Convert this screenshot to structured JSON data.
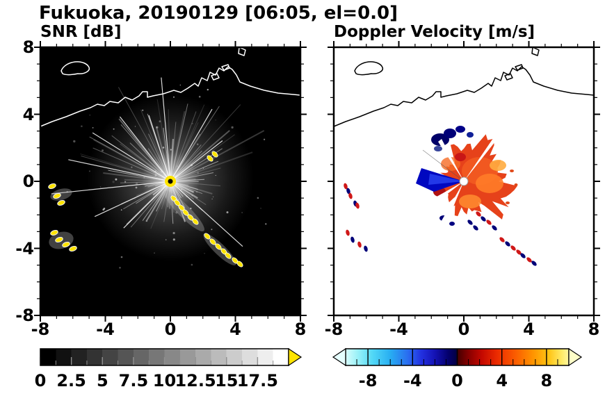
{
  "header": {
    "title": "Fukuoka, 20190129 [06:05, el=0.0]"
  },
  "panels": {
    "snr": {
      "title": "SNR [dB]",
      "yticks": [
        "8",
        "4",
        "0",
        "-4",
        "-8"
      ],
      "xticks": [
        "-8",
        "-4",
        "0",
        "4",
        "8"
      ],
      "colorbar": {
        "labels": [
          "0",
          "2.5",
          "5",
          "7.5",
          "10",
          "12.5",
          "15",
          "17.5"
        ]
      }
    },
    "doppler": {
      "title": "Doppler Velocity [m/s]",
      "xticks": [
        "-8",
        "-4",
        "0",
        "4",
        "8"
      ],
      "colorbar": {
        "labels": [
          "-8",
          "-4",
          "0",
          "4",
          "8"
        ]
      }
    }
  },
  "colors": {
    "snr_background": "#000000",
    "snr_echo": "#ffe400",
    "snr_colorbar_over_arrow": "#ffe400",
    "doppler_positive": "#e6421a",
    "doppler_negative": "#0008c0",
    "doppler_under_arrow": "#e6ffff",
    "doppler_over_arrow": "#ffffc8"
  },
  "chart_data": [
    {
      "type": "heatmap",
      "panel": "left",
      "title": "SNR [dB]",
      "xlim": [
        -8,
        8
      ],
      "ylim": [
        -8,
        8
      ],
      "xticks": [
        -8,
        -4,
        0,
        4,
        8
      ],
      "yticks": [
        -8,
        -4,
        0,
        4,
        8
      ],
      "grid": false,
      "background": "black (SNR = 0 dB)",
      "colorbar": {
        "orientation": "horizontal",
        "range": [
          0,
          20
        ],
        "tick_values": [
          0,
          2.5,
          5,
          7.5,
          10,
          12.5,
          15,
          17.5
        ],
        "scale": "grayscale black to white",
        "over_range_arrow": "yellow"
      },
      "features": [
        {
          "label": "radar site",
          "x": 0,
          "y": 0,
          "desc": "saturated yellow core with black center dot"
        },
        {
          "label": "radial spoke artifacts",
          "desc": "thin white streaks radiating from origin, brightest fan toward upper-left through upper-right, haze radius ~4 km"
        },
        {
          "label": "high-SNR clutter arc",
          "desc": "yellow (>20 dB) blobs with gray fringe along arc from ~(0.3,-1.0) to ~(3.8,-4.7), short yellow dash near (2.4,1.3)"
        },
        {
          "label": "high-SNR patches west",
          "desc": "yellow/white patches near x=-7.3, y=-0.6 to -3.8"
        },
        {
          "label": "coastline overlay",
          "desc": "white coastline across top near y=4 to 5.5, island near (-6.3,6.9), harbor piers near (2.5-4.5, 5.3-6.8), islet near (4.3,7.8)"
        }
      ]
    },
    {
      "type": "heatmap",
      "panel": "right",
      "title": "Doppler Velocity [m/s]",
      "xlim": [
        -8,
        8
      ],
      "ylim": [
        -8,
        8
      ],
      "xticks": [
        -8,
        -4,
        0,
        4,
        8
      ],
      "yticks": [
        -8,
        -4,
        0,
        4,
        8
      ],
      "grid": false,
      "background": "white (no data)",
      "colorbar": {
        "orientation": "horizontal",
        "range": [
          -10,
          10
        ],
        "tick_values": [
          -8,
          -4,
          0,
          4,
          8
        ],
        "scale": "pale cyan to cyan to blue to dark navy | dark red to red to orange to yellow to pale yellow",
        "under_range_arrow": "pale cyan",
        "over_range_arrow": "pale yellow"
      },
      "features": [
        {
          "label": "main echo",
          "desc": "jagged blob radius ~2.5 km around origin, dominated by +2 to +6 m/s (red/orange), spiky extension eastward to ~3"
        },
        {
          "label": "negative velocity wedge",
          "desc": "dark blue (-6 to -10 m/s) wedge west of origin reaching ~(-2.5,0) and navy patches near (-1.4,2.6) to (-0.2,3.2)"
        },
        {
          "label": "beam-blockage gaps",
          "desc": "thin white radial wedges through the echo toward SW, WSW, NE"
        },
        {
          "label": "clutter specks",
          "desc": "alternating red/navy specks along arc (0.8,-2.0) to (3.9,-4.9) and near x=-7.3, y=-0.6 to -3.8"
        },
        {
          "label": "coastline overlay",
          "desc": "black coastline across top, same geography as left panel"
        }
      ]
    }
  ]
}
